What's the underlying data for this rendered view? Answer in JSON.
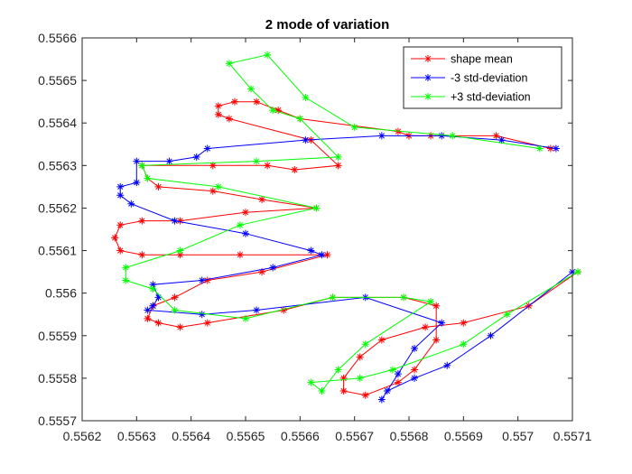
{
  "chart_data": {
    "type": "line",
    "title": "2 mode of variation",
    "xlabel": "",
    "ylabel": "",
    "xlim": [
      0.5562,
      0.5571
    ],
    "ylim": [
      0.5557,
      0.5566
    ],
    "x_ticks": [
      {
        "value": 0.5562,
        "label": "0.5562"
      },
      {
        "value": 0.5563,
        "label": "0.5563"
      },
      {
        "value": 0.5564,
        "label": "0.5564"
      },
      {
        "value": 0.5565,
        "label": "0.5565"
      },
      {
        "value": 0.5566,
        "label": "0.5566"
      },
      {
        "value": 0.5567,
        "label": "0.5567"
      },
      {
        "value": 0.5568,
        "label": "0.5568"
      },
      {
        "value": 0.5569,
        "label": "0.5569"
      },
      {
        "value": 0.557,
        "label": "0.557"
      },
      {
        "value": 0.5571,
        "label": "0.5571"
      }
    ],
    "y_ticks": [
      {
        "value": 0.5557,
        "label": "0.5557"
      },
      {
        "value": 0.5558,
        "label": "0.5558"
      },
      {
        "value": 0.5559,
        "label": "0.5559"
      },
      {
        "value": 0.556,
        "label": "0.556"
      },
      {
        "value": 0.5561,
        "label": "0.5561"
      },
      {
        "value": 0.5562,
        "label": "0.5562"
      },
      {
        "value": 0.5563,
        "label": "0.5563"
      },
      {
        "value": 0.5564,
        "label": "0.5564"
      },
      {
        "value": 0.5565,
        "label": "0.5565"
      },
      {
        "value": 0.5566,
        "label": "0.5566"
      }
    ],
    "grid": false,
    "legend_position": "top-right",
    "marker": "asterisk",
    "series": [
      {
        "name": "shape mean",
        "color": "#ff0000",
        "points": [
          [
            0.55706,
            0.55634
          ],
          [
            0.55696,
            0.55637
          ],
          [
            0.55684,
            0.55637
          ],
          [
            0.5568,
            0.55637
          ],
          [
            0.55678,
            0.55638
          ],
          [
            0.5566,
            0.55641
          ],
          [
            0.55656,
            0.55643
          ],
          [
            0.55652,
            0.55645
          ],
          [
            0.55648,
            0.55645
          ],
          [
            0.55645,
            0.55644
          ],
          [
            0.55645,
            0.55642
          ],
          [
            0.55647,
            0.55641
          ],
          [
            0.55662,
            0.55636
          ],
          [
            0.55667,
            0.5563
          ],
          [
            0.55659,
            0.55629
          ],
          [
            0.55654,
            0.5563
          ],
          [
            0.55644,
            0.5563
          ],
          [
            0.55631,
            0.5563
          ],
          [
            0.55632,
            0.55627
          ],
          [
            0.55634,
            0.55625
          ],
          [
            0.55644,
            0.55624
          ],
          [
            0.55653,
            0.55622
          ],
          [
            0.55663,
            0.5562
          ],
          [
            0.5565,
            0.55619
          ],
          [
            0.55638,
            0.55617
          ],
          [
            0.55631,
            0.55617
          ],
          [
            0.55627,
            0.55616
          ],
          [
            0.55626,
            0.55613
          ],
          [
            0.55627,
            0.5561
          ],
          [
            0.55631,
            0.55609
          ],
          [
            0.55638,
            0.55609
          ],
          [
            0.55649,
            0.55609
          ],
          [
            0.55665,
            0.55609
          ],
          [
            0.55653,
            0.55605
          ],
          [
            0.55643,
            0.55603
          ],
          [
            0.55637,
            0.55599
          ],
          [
            0.55633,
            0.55597
          ],
          [
            0.55632,
            0.55594
          ],
          [
            0.55634,
            0.55593
          ],
          [
            0.55638,
            0.55592
          ],
          [
            0.55643,
            0.55593
          ],
          [
            0.55657,
            0.55596
          ],
          [
            0.55666,
            0.55599
          ],
          [
            0.55679,
            0.55599
          ],
          [
            0.55685,
            0.55597
          ],
          [
            0.55685,
            0.55589
          ],
          [
            0.55681,
            0.55582
          ],
          [
            0.55678,
            0.55579
          ],
          [
            0.55672,
            0.55576
          ],
          [
            0.55668,
            0.55577
          ],
          [
            0.55668,
            0.5558
          ],
          [
            0.55671,
            0.55585
          ],
          [
            0.55675,
            0.55589
          ],
          [
            0.55683,
            0.55592
          ],
          [
            0.5569,
            0.55593
          ],
          [
            0.55702,
            0.55597
          ],
          [
            0.55711,
            0.55605
          ]
        ]
      },
      {
        "name": "-3 std-deviation",
        "color": "#0000ff",
        "points": [
          [
            0.55707,
            0.55634
          ],
          [
            0.55697,
            0.55636
          ],
          [
            0.55686,
            0.55637
          ],
          [
            0.55675,
            0.55637
          ],
          [
            0.55661,
            0.55636
          ],
          [
            0.55643,
            0.55634
          ],
          [
            0.55641,
            0.55632
          ],
          [
            0.55636,
            0.55631
          ],
          [
            0.5563,
            0.55631
          ],
          [
            0.5563,
            0.55626
          ],
          [
            0.55627,
            0.55625
          ],
          [
            0.55627,
            0.55623
          ],
          [
            0.55629,
            0.55621
          ],
          [
            0.55637,
            0.55617
          ],
          [
            0.5565,
            0.55614
          ],
          [
            0.55662,
            0.5561
          ],
          [
            0.55664,
            0.55609
          ],
          [
            0.55655,
            0.55606
          ],
          [
            0.55642,
            0.55603
          ],
          [
            0.55633,
            0.55602
          ],
          [
            0.55634,
            0.55599
          ],
          [
            0.55633,
            0.55597
          ],
          [
            0.55632,
            0.55596
          ],
          [
            0.55642,
            0.55595
          ],
          [
            0.55652,
            0.55596
          ],
          [
            0.55672,
            0.55599
          ],
          [
            0.55686,
            0.55593
          ],
          [
            0.55681,
            0.55587
          ],
          [
            0.55678,
            0.55581
          ],
          [
            0.55675,
            0.55575
          ],
          [
            0.55676,
            0.55577
          ],
          [
            0.55681,
            0.5558
          ],
          [
            0.55687,
            0.55583
          ],
          [
            0.55695,
            0.5559
          ],
          [
            0.5571,
            0.55605
          ]
        ]
      },
      {
        "name": "+3 std-deviation",
        "color": "#00ff00",
        "points": [
          [
            0.55704,
            0.55634
          ],
          [
            0.55688,
            0.55637
          ],
          [
            0.5567,
            0.55639
          ],
          [
            0.55661,
            0.55646
          ],
          [
            0.55654,
            0.55656
          ],
          [
            0.55647,
            0.55654
          ],
          [
            0.55651,
            0.55648
          ],
          [
            0.55655,
            0.55643
          ],
          [
            0.5566,
            0.55641
          ],
          [
            0.55667,
            0.55632
          ],
          [
            0.55652,
            0.55631
          ],
          [
            0.55631,
            0.5563
          ],
          [
            0.55632,
            0.55627
          ],
          [
            0.55645,
            0.55625
          ],
          [
            0.55663,
            0.5562
          ],
          [
            0.55649,
            0.55616
          ],
          [
            0.55638,
            0.5561
          ],
          [
            0.55628,
            0.55606
          ],
          [
            0.55628,
            0.55603
          ],
          [
            0.55633,
            0.55601
          ],
          [
            0.55637,
            0.55596
          ],
          [
            0.5565,
            0.55594
          ],
          [
            0.55666,
            0.55599
          ],
          [
            0.55679,
            0.55599
          ],
          [
            0.55684,
            0.55598
          ],
          [
            0.55672,
            0.55588
          ],
          [
            0.55667,
            0.55582
          ],
          [
            0.55664,
            0.55577
          ],
          [
            0.55662,
            0.55579
          ],
          [
            0.55671,
            0.5558
          ],
          [
            0.55677,
            0.55582
          ],
          [
            0.5569,
            0.55588
          ],
          [
            0.55698,
            0.55595
          ],
          [
            0.55711,
            0.55605
          ]
        ]
      }
    ]
  }
}
